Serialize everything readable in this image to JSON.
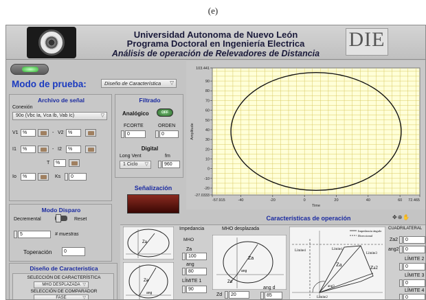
{
  "caption": "(e)",
  "header": {
    "line1": "Universidad Autonoma de Nuevo León",
    "line2": "Programa Doctoral en Ingeniería Electrica",
    "line3": "Análisis de operación de Relevadores de Distancia",
    "brand": "DIE"
  },
  "mode": {
    "label": "Modo de prueba:",
    "value": "Diseño de Característica"
  },
  "archivo": {
    "title": "Archivo de señal",
    "conexion_label": "Conexión",
    "conexion_value": "90o (Vbc Ia, Vca Ib, Vab Ic)",
    "v1": "V1",
    "v2": "V2",
    "i1": "I1",
    "i2": "I2",
    "t": "T",
    "io": "Io",
    "ks": "Ks",
    "path_prefix": "%",
    "ks_value": "0"
  },
  "filtrado": {
    "title": "Filtrado",
    "analogico": "Analógico",
    "off": "OFF",
    "fcorte_label": "FCORTE",
    "fcorte_value": "0",
    "orden_label": "ORDEN",
    "orden_value": "0",
    "digital": "Digital",
    "longvent_label": "Long Vent",
    "longvent_value": "1 Ciclo",
    "fm_label": "fm",
    "fm_value": "960"
  },
  "disparo": {
    "title": "Modo Disparo",
    "decremental": "Decremental",
    "reset": "Reset",
    "muestras_value": "5",
    "muestras_label": "# muestras",
    "toperacion_label": "Toperación",
    "toperacion_value": "0"
  },
  "senalizacion": {
    "title": "Señalización"
  },
  "diseno": {
    "title": "Diseño de Caracteristica",
    "sel_car_label": "SELECCIÓN DE CARACTERÍSTICA",
    "sel_car_value": "MHO DESPLAZADA",
    "sel_comp_label": "SELECCIÓN DE COMPARADOR",
    "sel_comp_value": "FASE"
  },
  "chart_data": {
    "type": "line",
    "title": "",
    "xlabel": "Time",
    "ylabel": "Amplitude",
    "xlim": [
      -57.915,
      72.465
    ],
    "ylim": [
      -27.0333,
      103.441
    ],
    "x_ticks": [
      "-57.915",
      "-40",
      "-20",
      "0",
      "20",
      "40",
      "60",
      "72.465"
    ],
    "y_ticks": [
      "103.441",
      "90",
      "80",
      "70",
      "60",
      "50",
      "40",
      "30",
      "20",
      "10",
      "0",
      "-10",
      "-20",
      "-27.0333"
    ],
    "grid": true,
    "series": [
      {
        "shape": "ellipse",
        "center": [
          7.275,
          38.2
        ],
        "radius_x": 53.5,
        "radius_y": 60.5,
        "color": "#111111"
      }
    ]
  },
  "caracteristicas": {
    "title": "Características de operación",
    "impedancia_label": "Impedancia",
    "mho_label": "MHO",
    "za_label": "Za",
    "za_value": "100",
    "ang_label": "ang",
    "ang_value": "80",
    "limite1_label": "LÍMITE 1",
    "limite1_value": "90",
    "mho_desp_label": "MHO desplazada",
    "zd_label": "Zd",
    "zd_value": "20",
    "angd_label": "ang d",
    "angd_value": "85",
    "legend1": "Impedancia ángulo",
    "legend2": "Direccional",
    "diag_za": "Za",
    "diag_zd": "Zd",
    "diag_ang": "ang",
    "diag_ang3": "ang3",
    "diag_limite1": "Límite1",
    "diag_limite2": "Límite2",
    "diag_limite3": "Límite3",
    "diag_limite4": "Límite4",
    "diag_za2": "Za2",
    "cuadrilateral_label": "CUADRILATERAL",
    "za2_label": "Za2",
    "za2_value": "0",
    "ang2_label": "ang2",
    "ang2_value": "0",
    "limite2_label": "LÍMITE 2",
    "limite2_value": "0",
    "limite3_label": "LÍMITE 3",
    "limite3_value": "0",
    "limite4_label": "LÍMITE 4",
    "limite4_value": "0"
  },
  "colors": {
    "title_blue": "#1a3ac0",
    "plot_bg": "#ffffd8",
    "grid": "#d8c860",
    "panel": "#c4c4c4"
  }
}
